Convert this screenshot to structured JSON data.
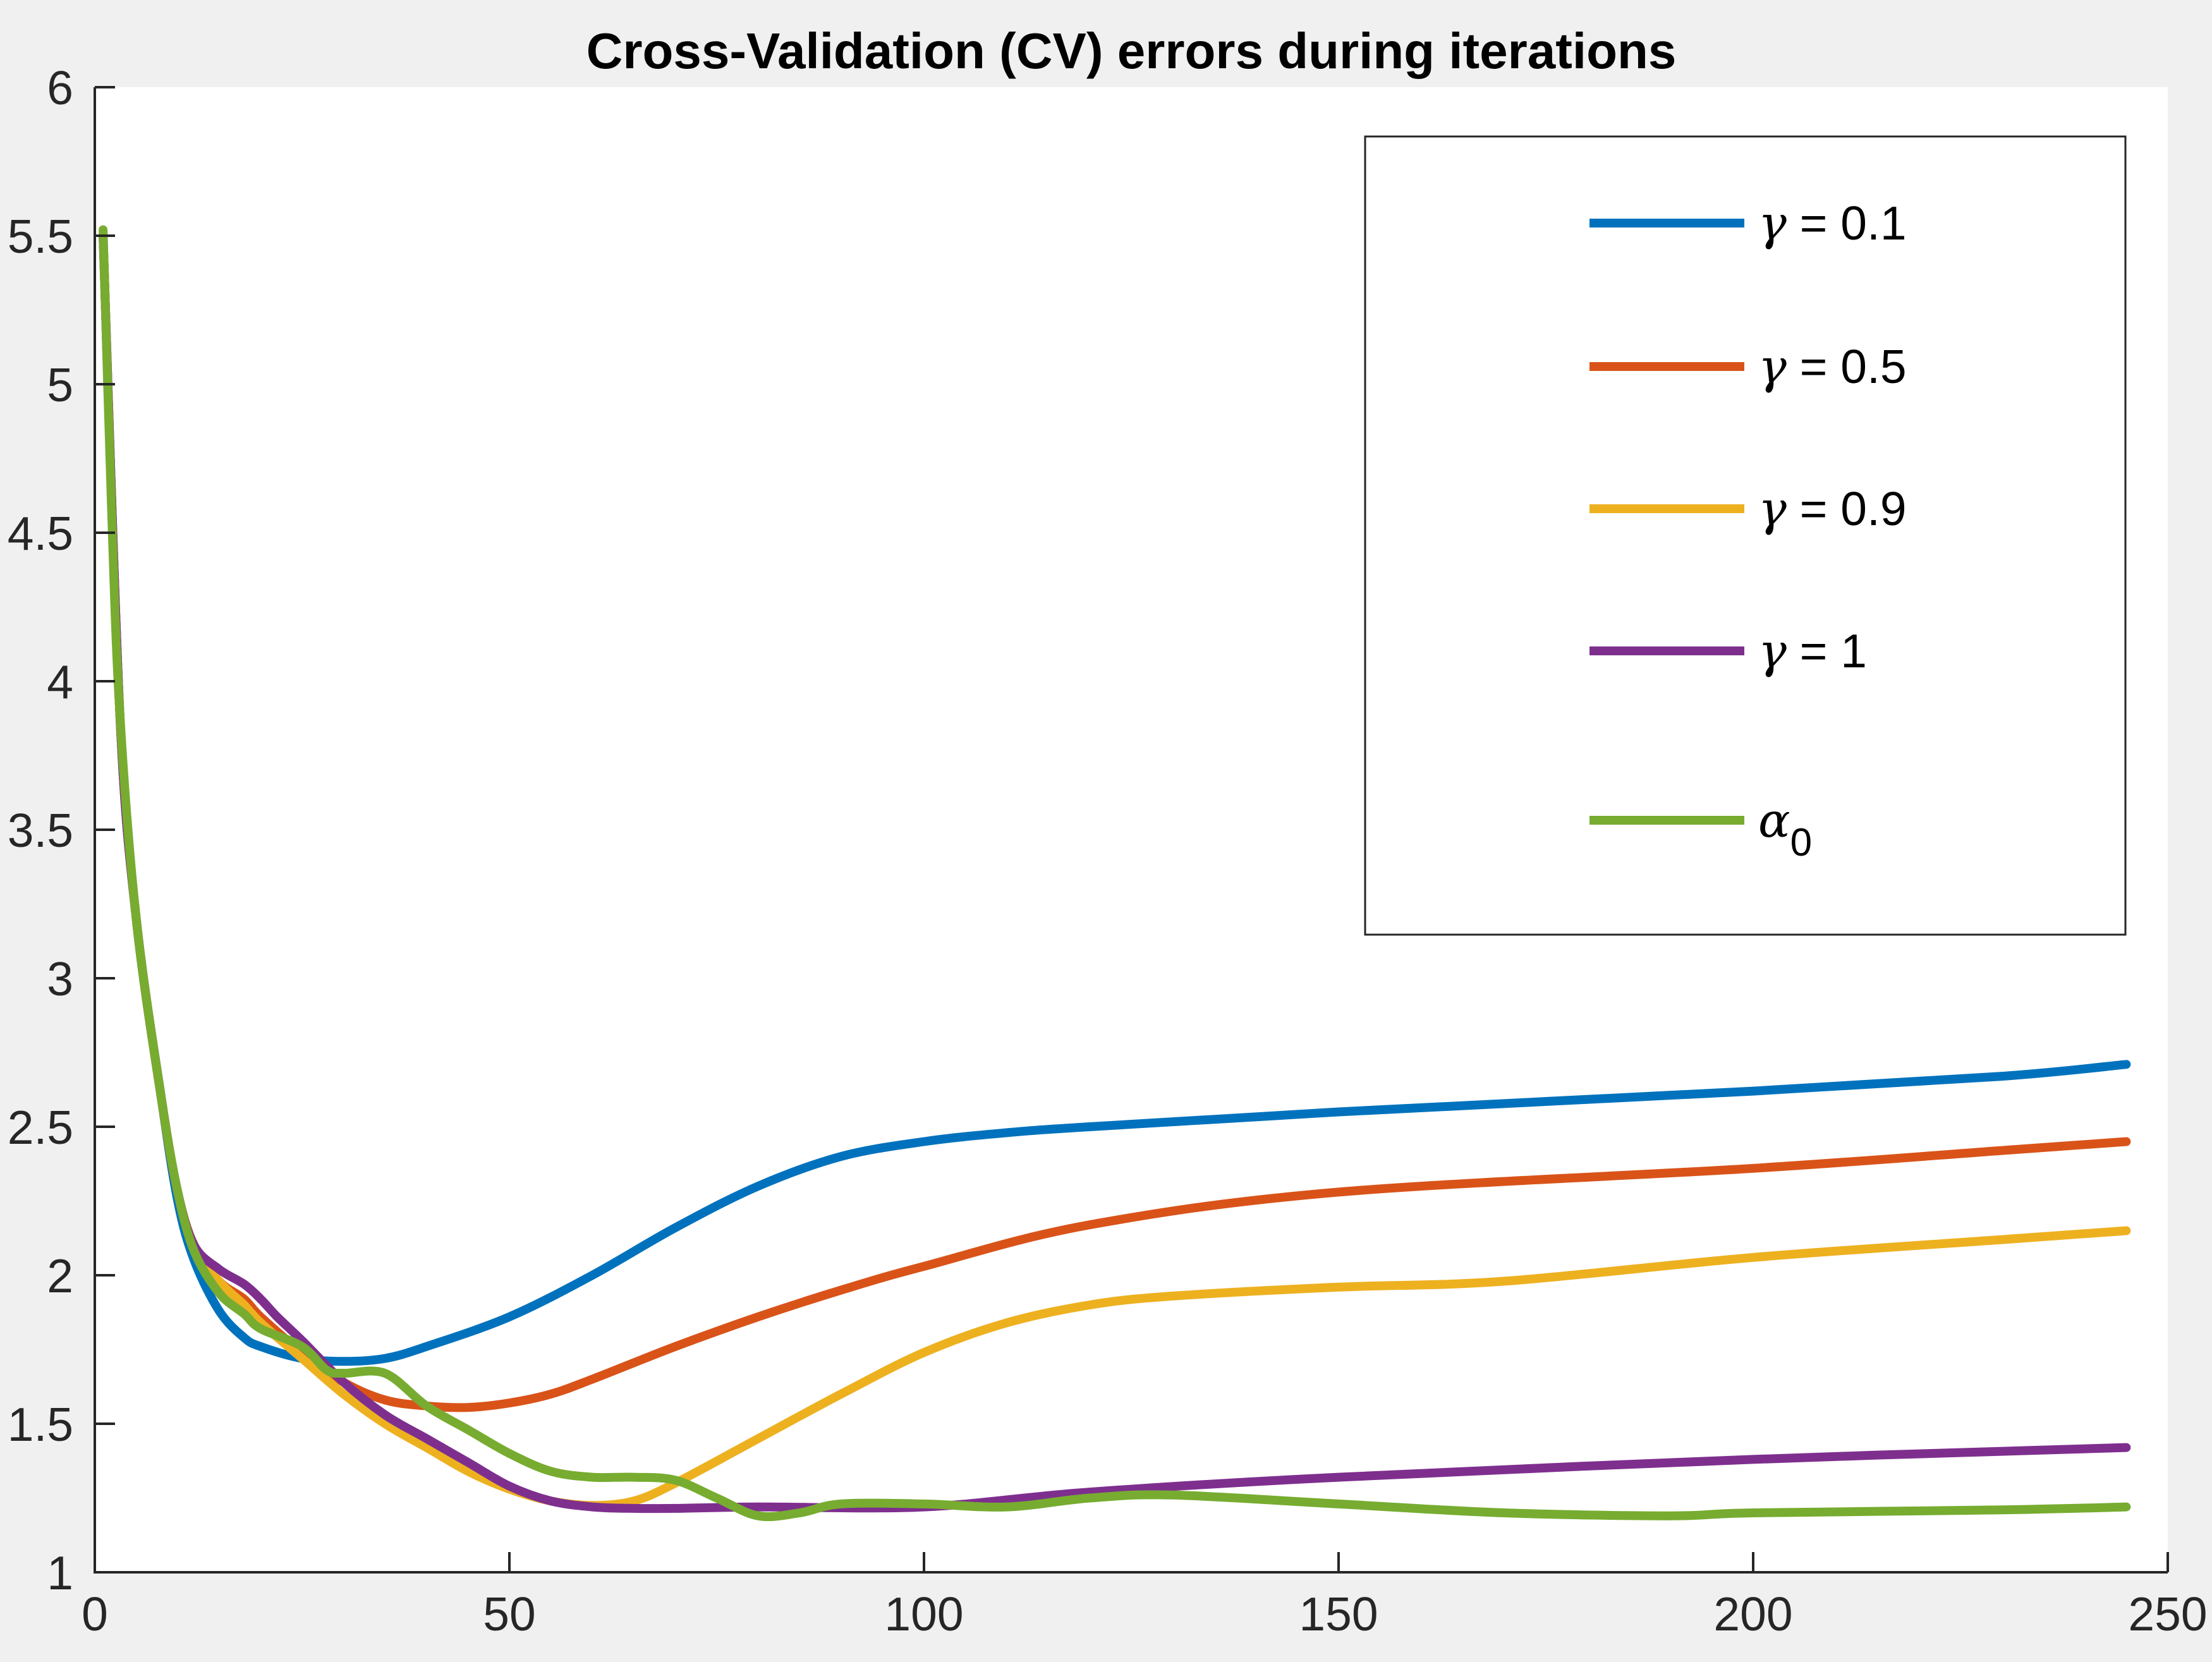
{
  "chart_data": {
    "type": "line",
    "title": "Cross-Validation (CV) errors during iterations",
    "xlabel": "",
    "ylabel": "",
    "xlim": [
      0,
      250
    ],
    "ylim": [
      1,
      6
    ],
    "xticks": [
      0,
      50,
      100,
      150,
      200,
      250
    ],
    "yticks": [
      1,
      1.5,
      2,
      2.5,
      3,
      3.5,
      4,
      4.5,
      5,
      5.5,
      6
    ],
    "xtick_labels": [
      "0",
      "50",
      "100",
      "150",
      "200",
      "250"
    ],
    "ytick_labels": [
      "1",
      "1.5",
      "2",
      "2.5",
      "3",
      "3.5",
      "4",
      "4.5",
      "5",
      "5.5",
      "6"
    ],
    "grid": false,
    "legend_position": "top-right",
    "series": [
      {
        "name": "γ = 0.1",
        "symbol": "γ",
        "label_suffix": " = 0.1",
        "subscript": "",
        "color": "#0072BD",
        "x": [
          1,
          3,
          5,
          8,
          10,
          12,
          15,
          18,
          20,
          25,
          30,
          35,
          40,
          50,
          60,
          70,
          80,
          90,
          100,
          110,
          120,
          150,
          200,
          230,
          245
        ],
        "y": [
          5.5,
          3.9,
          3.2,
          2.6,
          2.25,
          2.05,
          1.88,
          1.79,
          1.76,
          1.72,
          1.71,
          1.72,
          1.76,
          1.86,
          2.0,
          2.16,
          2.3,
          2.4,
          2.45,
          2.48,
          2.5,
          2.55,
          2.62,
          2.67,
          2.71
        ]
      },
      {
        "name": "γ = 0.5",
        "symbol": "γ",
        "label_suffix": " = 0.5",
        "subscript": "",
        "color": "#D95319",
        "x": [
          1,
          3,
          5,
          8,
          10,
          12,
          15,
          18,
          20,
          25,
          30,
          35,
          40,
          45,
          50,
          55,
          60,
          70,
          80,
          90,
          100,
          120,
          150,
          200,
          230,
          245
        ],
        "y": [
          5.5,
          3.9,
          3.2,
          2.6,
          2.28,
          2.1,
          1.98,
          1.92,
          1.86,
          1.74,
          1.64,
          1.58,
          1.56,
          1.555,
          1.57,
          1.6,
          1.65,
          1.76,
          1.86,
          1.95,
          2.03,
          2.17,
          2.28,
          2.36,
          2.42,
          2.45
        ]
      },
      {
        "name": "γ = 0.9",
        "symbol": "γ",
        "label_suffix": " = 0.9",
        "subscript": "",
        "color": "#EDB120",
        "x": [
          1,
          3,
          5,
          8,
          10,
          12,
          15,
          18,
          20,
          25,
          30,
          35,
          40,
          45,
          50,
          55,
          60,
          65,
          70,
          80,
          90,
          100,
          110,
          120,
          130,
          150,
          170,
          200,
          230,
          245
        ],
        "y": [
          5.5,
          3.9,
          3.2,
          2.6,
          2.28,
          2.1,
          1.98,
          1.9,
          1.84,
          1.72,
          1.6,
          1.5,
          1.42,
          1.34,
          1.28,
          1.24,
          1.225,
          1.24,
          1.3,
          1.45,
          1.6,
          1.74,
          1.84,
          1.9,
          1.93,
          1.96,
          1.98,
          2.06,
          2.12,
          2.15
        ]
      },
      {
        "name": "γ = 1",
        "symbol": "γ",
        "label_suffix": " = 1",
        "subscript": "",
        "color": "#7E2F8E",
        "x": [
          1,
          3,
          5,
          8,
          10,
          12,
          15,
          18,
          20,
          22,
          25,
          30,
          35,
          40,
          45,
          50,
          55,
          60,
          65,
          70,
          80,
          100,
          120,
          150,
          200,
          245
        ],
        "y": [
          5.5,
          3.9,
          3.2,
          2.6,
          2.28,
          2.1,
          2.02,
          1.97,
          1.92,
          1.86,
          1.78,
          1.64,
          1.53,
          1.45,
          1.37,
          1.29,
          1.24,
          1.22,
          1.215,
          1.215,
          1.22,
          1.22,
          1.27,
          1.32,
          1.38,
          1.42
        ]
      },
      {
        "name": "α0",
        "symbol": "α",
        "label_suffix": "",
        "subscript": "0",
        "color": "#77AC30",
        "x": [
          1,
          2,
          3,
          5,
          8,
          10,
          12,
          15,
          18,
          20,
          25,
          28,
          30,
          35,
          40,
          45,
          50,
          55,
          60,
          65,
          70,
          75,
          80,
          85,
          90,
          100,
          110,
          120,
          130,
          150,
          170,
          190,
          200,
          230,
          245
        ],
        "y": [
          5.52,
          4.6,
          3.9,
          3.2,
          2.6,
          2.28,
          2.08,
          1.94,
          1.87,
          1.82,
          1.76,
          1.68,
          1.67,
          1.67,
          1.56,
          1.48,
          1.4,
          1.34,
          1.32,
          1.32,
          1.31,
          1.25,
          1.19,
          1.2,
          1.23,
          1.23,
          1.22,
          1.25,
          1.26,
          1.23,
          1.2,
          1.19,
          1.2,
          1.21,
          1.22
        ]
      }
    ]
  }
}
